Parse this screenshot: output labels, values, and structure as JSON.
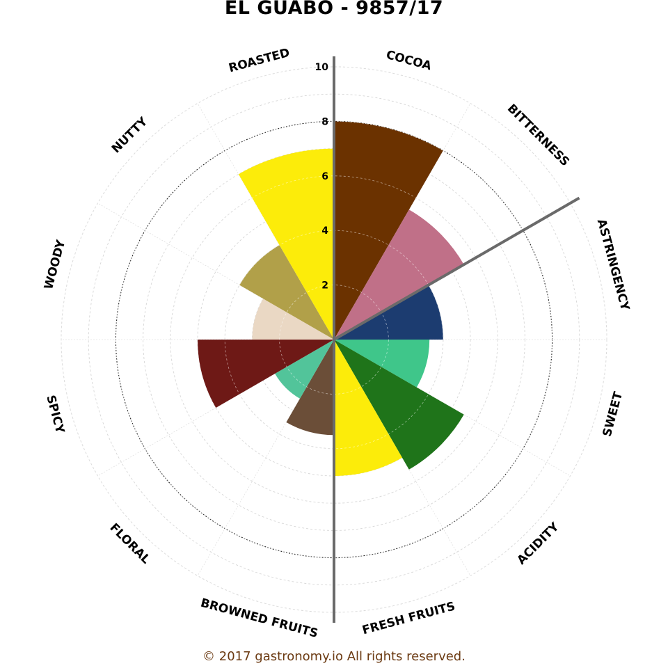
{
  "title": "EL GUABO - 9857/17",
  "footer": "© 2017 gastronomy.io All rights reserved.",
  "chart_data": {
    "type": "radar-bar",
    "title": "EL GUABO - 9857/17",
    "r_range": [
      0,
      10
    ],
    "r_ticks": [
      "2",
      "4",
      "6",
      "8",
      "10"
    ],
    "grid": true,
    "categories": [
      "COCOA",
      "BITTERNESS",
      "ASTRINGENCY",
      "SWEET",
      "ACIDITY",
      "FRESH FRUITS",
      "BROWNED FRUITS",
      "FLORAL",
      "SPICY",
      "WOODY",
      "NUTTY",
      "ROASTED"
    ],
    "values": [
      8,
      5.5,
      4,
      3.5,
      5.5,
      5,
      3.5,
      2.5,
      5,
      3,
      4,
      7
    ],
    "colors": [
      "#6b3200",
      "#c07088",
      "#1c3c70",
      "#3fc68a",
      "#1f741a",
      "#fcec0a",
      "#6b4e38",
      "#52c49a",
      "#6e1916",
      "#ead8c4",
      "#b1a049",
      "#fcec0a"
    ],
    "highlight_axes": [
      "COCOA",
      "ASTRINGENCY",
      "BROWNED FRUITS"
    ]
  }
}
